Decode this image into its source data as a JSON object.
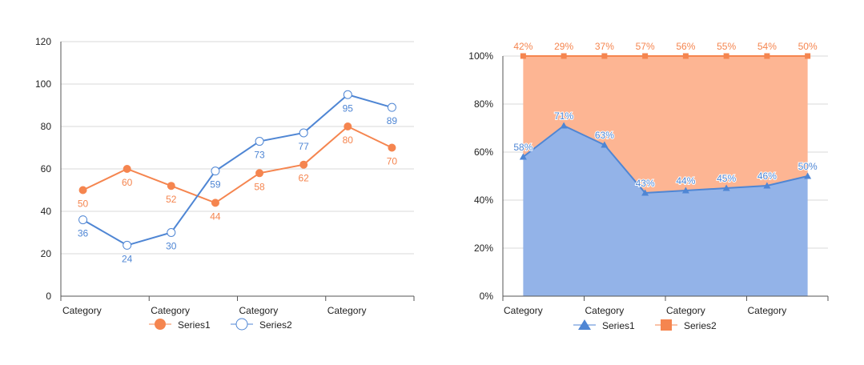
{
  "chart_data": [
    {
      "type": "line",
      "categories": [
        "Category",
        "",
        "Category",
        "",
        "Category",
        "",
        "Category",
        ""
      ],
      "series": [
        {
          "name": "Series1",
          "values": [
            50,
            60,
            52,
            44,
            58,
            62,
            80,
            70
          ],
          "color": "#f5854f",
          "marker": "filled-circle"
        },
        {
          "name": "Series2",
          "values": [
            36,
            24,
            30,
            59,
            73,
            77,
            95,
            89
          ],
          "color": "#4f86d4",
          "marker": "hollow-circle"
        }
      ],
      "ylim": [
        0,
        120
      ],
      "yticks": [
        0,
        20,
        40,
        60,
        80,
        100,
        120
      ],
      "grid": true,
      "legend": "bottom"
    },
    {
      "type": "area",
      "stacked": "percent",
      "categories": [
        "Category",
        "",
        "Category",
        "",
        "Category",
        "",
        "Category",
        ""
      ],
      "series": [
        {
          "name": "Series1",
          "values": [
            58,
            71,
            63,
            43,
            44,
            45,
            46,
            50
          ],
          "labels": [
            "58%",
            "71%",
            "63%",
            "43%",
            "44%",
            "45%",
            "46%",
            "50%"
          ],
          "color": "#4f86d4",
          "fill": "#93b3e8",
          "marker": "triangle"
        },
        {
          "name": "Series2",
          "values": [
            42,
            29,
            37,
            57,
            56,
            55,
            54,
            50
          ],
          "labels": [
            "42%",
            "29%",
            "37%",
            "57%",
            "56%",
            "55%",
            "54%",
            "50%"
          ],
          "color": "#f5854f",
          "fill": "#fdb593",
          "marker": "square"
        }
      ],
      "ylim": [
        0,
        100
      ],
      "yticks": [
        "0%",
        "20%",
        "40%",
        "60%",
        "80%",
        "100%"
      ],
      "grid": true,
      "legend": "bottom"
    }
  ]
}
